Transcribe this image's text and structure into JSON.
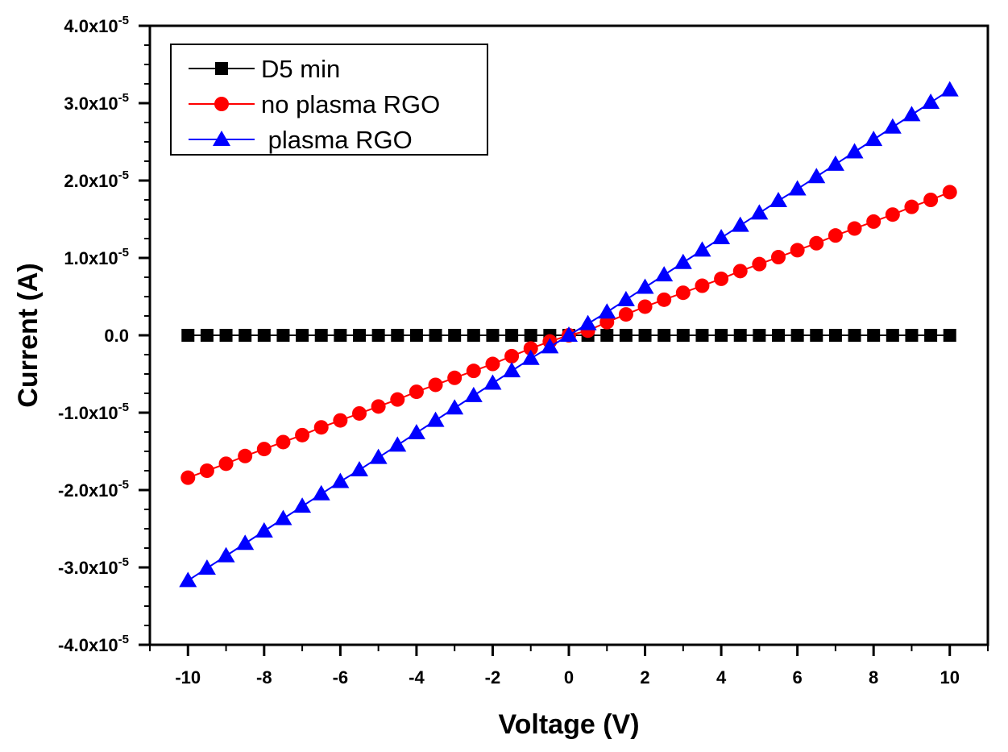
{
  "chart_data": {
    "type": "line",
    "title": "",
    "xlabel": "Voltage (V)",
    "ylabel": "Current (A)",
    "xlim": [
      -11,
      11
    ],
    "ylim": [
      -4e-05,
      4e-05
    ],
    "x_ticks": [
      -10,
      -8,
      -6,
      -4,
      -2,
      0,
      2,
      4,
      6,
      8,
      10
    ],
    "x_tick_labels": [
      "-10",
      "-8",
      "-6",
      "-4",
      "-2",
      "0",
      "2",
      "4",
      "6",
      "8",
      "10"
    ],
    "y_ticks": [
      -4e-05,
      -3e-05,
      -2e-05,
      -1e-05,
      0,
      1e-05,
      2e-05,
      3e-05,
      4e-05
    ],
    "y_tick_labels": [
      {
        "mantissa": "-4.0x10",
        "exp": "-5"
      },
      {
        "mantissa": "-3.0x10",
        "exp": "-5"
      },
      {
        "mantissa": "-2.0x10",
        "exp": "-5"
      },
      {
        "mantissa": "-1.0x10",
        "exp": "-5"
      },
      {
        "mantissa": "0.0",
        "exp": ""
      },
      {
        "mantissa": "1.0x10",
        "exp": "-5"
      },
      {
        "mantissa": "2.0x10",
        "exp": "-5"
      },
      {
        "mantissa": "3.0x10",
        "exp": "-5"
      },
      {
        "mantissa": "4.0x10",
        "exp": "-5"
      }
    ],
    "grid": false,
    "legend_position": "top-left",
    "x": [
      -10,
      -9.5,
      -9,
      -8.5,
      -8,
      -7.5,
      -7,
      -6.5,
      -6,
      -5.5,
      -5,
      -4.5,
      -4,
      -3.5,
      -3,
      -2.5,
      -2,
      -1.5,
      -1,
      -0.5,
      0,
      0.5,
      1,
      1.5,
      2,
      2.5,
      3,
      3.5,
      4,
      4.5,
      5,
      5.5,
      6,
      6.5,
      7,
      7.5,
      8,
      8.5,
      9,
      9.5,
      10
    ],
    "series": [
      {
        "name": "D5 min",
        "color": "#000000",
        "marker": "square",
        "values": [
          0,
          0,
          0,
          0,
          0,
          0,
          0,
          0,
          0,
          0,
          0,
          0,
          0,
          0,
          0,
          0,
          0,
          0,
          0,
          0,
          0,
          0,
          0,
          0,
          0,
          0,
          0,
          0,
          0,
          0,
          0,
          0,
          0,
          0,
          0,
          0,
          0,
          0,
          0,
          0,
          0
        ]
      },
      {
        "name": "no plasma RGO",
        "color": "#ff0000",
        "marker": "circle",
        "values": [
          -1.84e-05,
          -1.75e-05,
          -1.66e-05,
          -1.56e-05,
          -1.47e-05,
          -1.38e-05,
          -1.29e-05,
          -1.19e-05,
          -1.1e-05,
          -1.01e-05,
          -9.2e-06,
          -8.3e-06,
          -7.3e-06,
          -6.4e-06,
          -5.5e-06,
          -4.6e-06,
          -3.7e-06,
          -2.7e-06,
          -1.7e-06,
          -8e-07,
          0,
          6e-07,
          1.7e-06,
          2.7e-06,
          3.7e-06,
          4.6e-06,
          5.5e-06,
          6.4e-06,
          7.3e-06,
          8.3e-06,
          9.2e-06,
          1.01e-05,
          1.1e-05,
          1.19e-05,
          1.29e-05,
          1.38e-05,
          1.47e-05,
          1.56e-05,
          1.66e-05,
          1.75e-05,
          1.85e-05
        ]
      },
      {
        "name": "plasma RGO",
        "color": "#0000ff",
        "marker": "triangle",
        "values": [
          -3.17e-05,
          -3.01e-05,
          -2.85e-05,
          -2.69e-05,
          -2.53e-05,
          -2.37e-05,
          -2.21e-05,
          -2.05e-05,
          -1.89e-05,
          -1.74e-05,
          -1.58e-05,
          -1.42e-05,
          -1.26e-05,
          -1.1e-05,
          -9.4e-06,
          -7.8e-06,
          -6.2e-06,
          -4.6e-06,
          -3e-06,
          -1.5e-06,
          0,
          1.5e-06,
          3e-06,
          4.6e-06,
          6.2e-06,
          7.8e-06,
          9.4e-06,
          1.1e-05,
          1.26e-05,
          1.42e-05,
          1.58e-05,
          1.74e-05,
          1.89e-05,
          2.05e-05,
          2.21e-05,
          2.37e-05,
          2.53e-05,
          2.69e-05,
          2.85e-05,
          3.01e-05,
          3.17e-05
        ]
      }
    ],
    "legend": [
      {
        "label": "D5 min"
      },
      {
        "label": "no plasma RGO"
      },
      {
        "label": " plasma RGO"
      }
    ]
  }
}
